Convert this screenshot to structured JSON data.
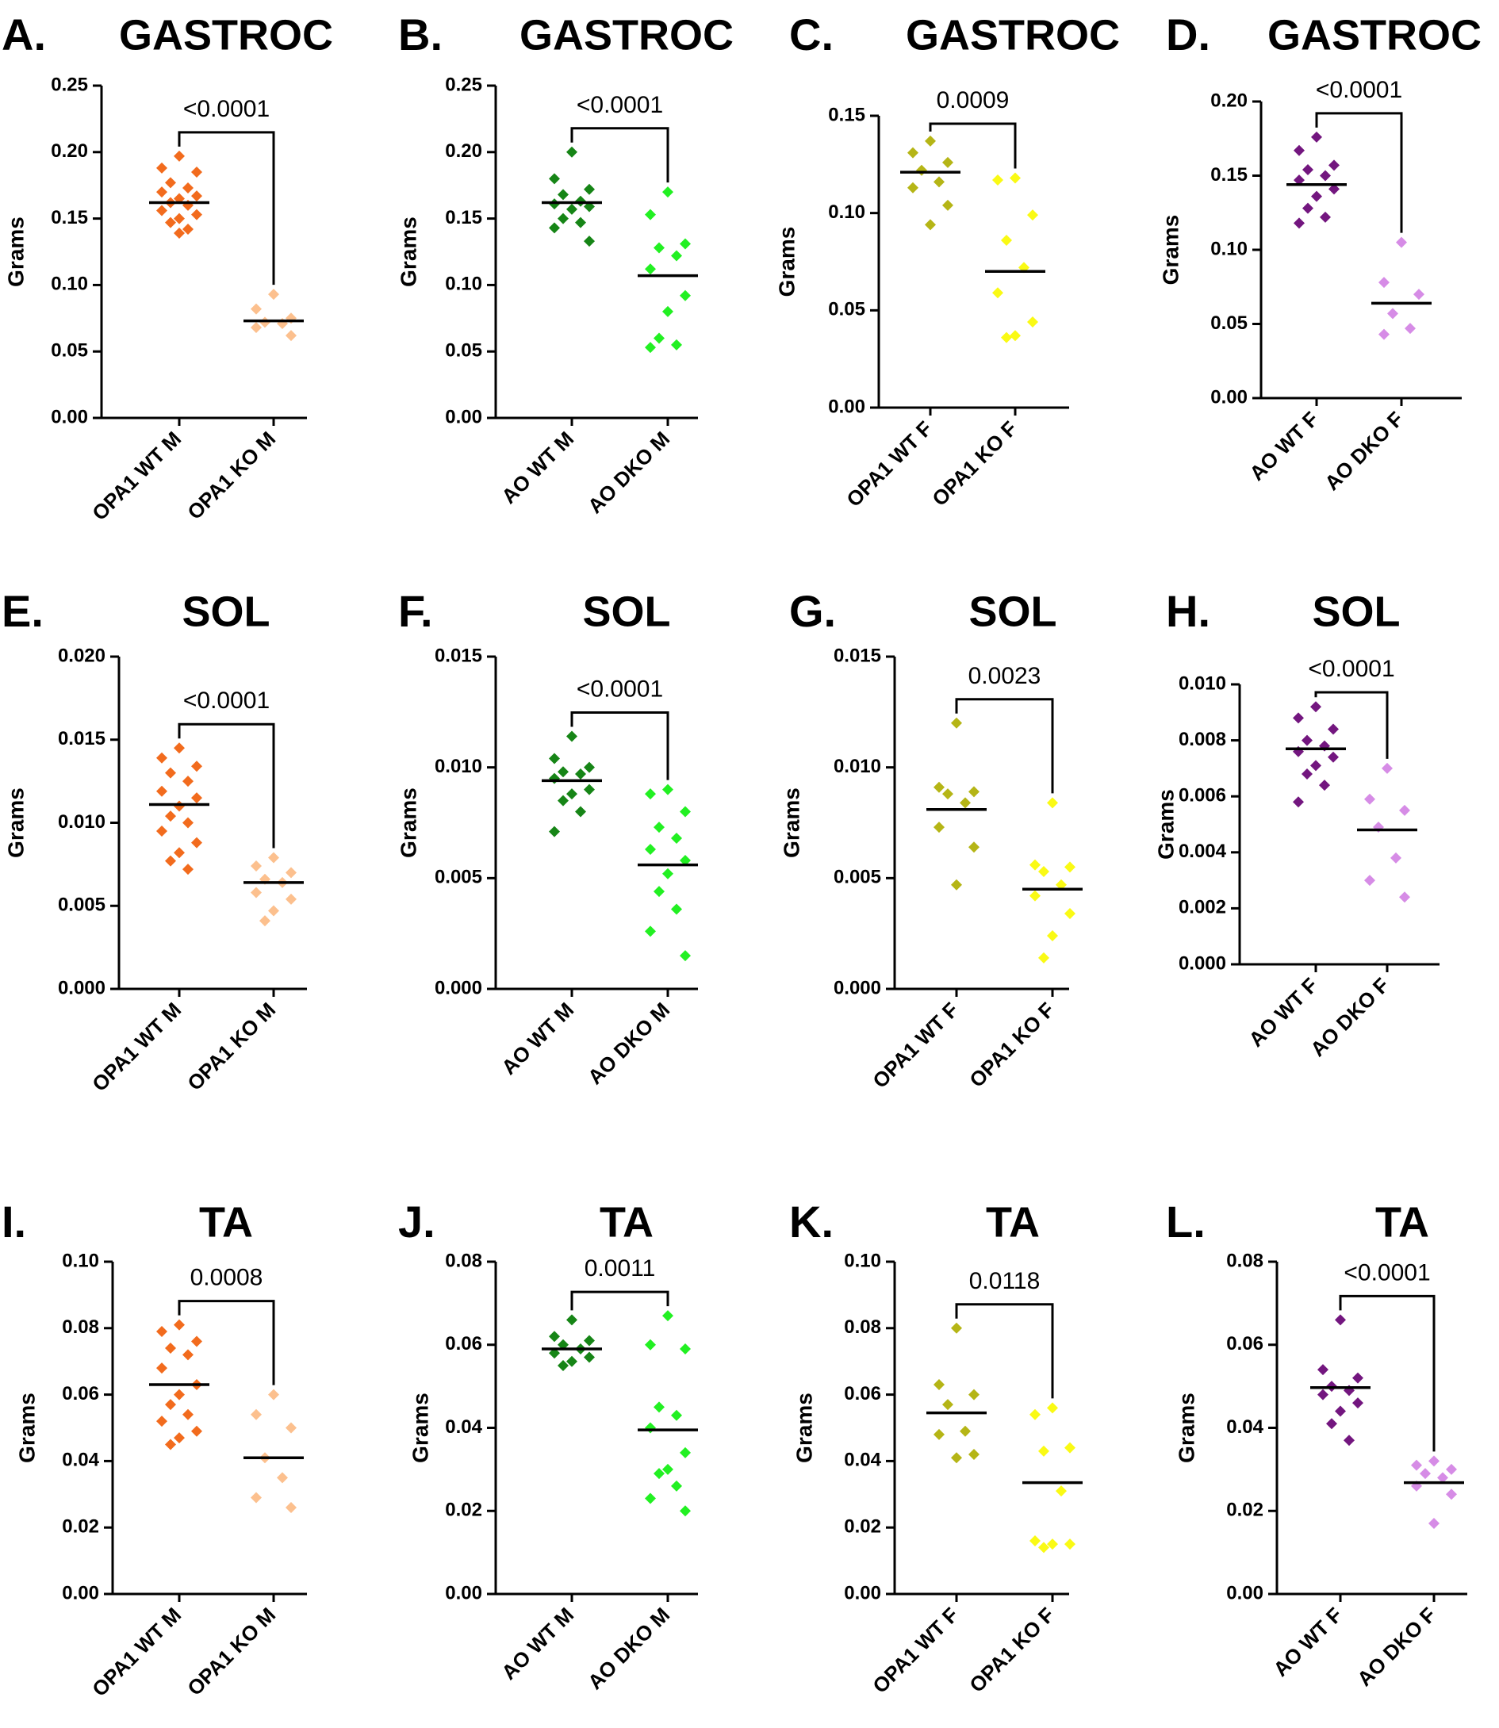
{
  "chart_data": [
    {
      "id": "A",
      "letter": "A.",
      "type": "scatter",
      "title": "GASTROC",
      "ylabel": "Grams",
      "ylim": [
        0,
        0.25
      ],
      "yticks": [
        "0.00",
        "0.05",
        "0.10",
        "0.15",
        "0.20",
        "0.25"
      ],
      "categories": [
        "OPA1 WT M",
        "OPA1 KO M"
      ],
      "colors": [
        "#f26b1d",
        "#fcc08e"
      ],
      "means": [
        0.162,
        0.073
      ],
      "pvalue": "<0.0001",
      "big": true,
      "series": [
        [
          0.197,
          0.188,
          0.185,
          0.177,
          0.173,
          0.17,
          0.167,
          0.165,
          0.162,
          0.16,
          0.156,
          0.153,
          0.15,
          0.147,
          0.142,
          0.139
        ],
        [
          0.093,
          0.082,
          0.075,
          0.072,
          0.071,
          0.068,
          0.062
        ]
      ]
    },
    {
      "id": "B",
      "letter": "B.",
      "type": "scatter",
      "title": "GASTROC",
      "ylabel": "Grams",
      "ylim": [
        0,
        0.25
      ],
      "yticks": [
        "0.00",
        "0.05",
        "0.10",
        "0.15",
        "0.20",
        "0.25"
      ],
      "categories": [
        "AO WT M",
        "AO DKO M"
      ],
      "colors": [
        "#168516",
        "#22f022"
      ],
      "means": [
        0.162,
        0.107
      ],
      "pvalue": "<0.0001",
      "big": true,
      "series": [
        [
          0.2,
          0.18,
          0.172,
          0.168,
          0.163,
          0.161,
          0.159,
          0.157,
          0.15,
          0.147,
          0.143,
          0.133
        ],
        [
          0.17,
          0.153,
          0.131,
          0.128,
          0.122,
          0.112,
          0.092,
          0.08,
          0.06,
          0.055,
          0.053
        ]
      ]
    },
    {
      "id": "C",
      "letter": "C.",
      "type": "scatter",
      "title": "GASTROC",
      "ylabel": "Grams",
      "ylim": [
        0,
        0.15
      ],
      "yticks": [
        "0.00",
        "0.05",
        "0.10",
        "0.15"
      ],
      "categories": [
        "OPA1 WT F",
        "OPA1 KO F"
      ],
      "colors": [
        "#b5b516",
        "#fafa14"
      ],
      "means": [
        0.121,
        0.07
      ],
      "pvalue": "0.0009",
      "big": false,
      "series": [
        [
          0.137,
          0.131,
          0.126,
          0.122,
          0.116,
          0.113,
          0.104,
          0.094
        ],
        [
          0.118,
          0.117,
          0.099,
          0.086,
          0.072,
          0.059,
          0.044,
          0.037,
          0.036
        ]
      ]
    },
    {
      "id": "D",
      "letter": "D.",
      "type": "scatter",
      "title": "GASTROC",
      "ylabel": "Grams",
      "ylim": [
        0,
        0.2
      ],
      "yticks": [
        "0.00",
        "0.05",
        "0.10",
        "0.15",
        "0.20"
      ],
      "categories": [
        "AO WT F",
        "AO DKO F"
      ],
      "colors": [
        "#73167f",
        "#d68ce6"
      ],
      "means": [
        0.144,
        0.064
      ],
      "pvalue": "<0.0001",
      "big": false,
      "series": [
        [
          0.176,
          0.167,
          0.157,
          0.154,
          0.15,
          0.147,
          0.141,
          0.136,
          0.128,
          0.122,
          0.118
        ],
        [
          0.105,
          0.078,
          0.07,
          0.057,
          0.047,
          0.043
        ]
      ]
    },
    {
      "id": "E",
      "letter": "E.",
      "type": "scatter",
      "title": "SOL",
      "ylabel": "Grams",
      "ylim": [
        0,
        0.02
      ],
      "yticks": [
        "0.000",
        "0.005",
        "0.010",
        "0.015",
        "0.020"
      ],
      "categories": [
        "OPA1 WT M",
        "OPA1 KO M"
      ],
      "colors": [
        "#f26b1d",
        "#fcc08e"
      ],
      "means": [
        0.0111,
        0.0064
      ],
      "pvalue": "<0.0001",
      "big": true,
      "series": [
        [
          0.0145,
          0.0139,
          0.0134,
          0.013,
          0.0125,
          0.0119,
          0.0115,
          0.011,
          0.0104,
          0.01,
          0.0095,
          0.0088,
          0.0082,
          0.0077,
          0.0072
        ],
        [
          0.0079,
          0.0074,
          0.007,
          0.0066,
          0.0064,
          0.0058,
          0.0054,
          0.0047,
          0.0041
        ]
      ]
    },
    {
      "id": "F",
      "letter": "F.",
      "type": "scatter",
      "title": "SOL",
      "ylabel": "Grams",
      "ylim": [
        0,
        0.015
      ],
      "yticks": [
        "0.000",
        "0.005",
        "0.010",
        "0.015"
      ],
      "categories": [
        "AO WT M",
        "AO DKO M"
      ],
      "colors": [
        "#168516",
        "#22f022"
      ],
      "means": [
        0.0094,
        0.0056
      ],
      "pvalue": "<0.0001",
      "big": true,
      "series": [
        [
          0.0114,
          0.0104,
          0.01,
          0.0098,
          0.0097,
          0.0095,
          0.009,
          0.0088,
          0.0085,
          0.008,
          0.0071
        ],
        [
          0.009,
          0.0088,
          0.008,
          0.0073,
          0.0068,
          0.0063,
          0.0058,
          0.0052,
          0.0044,
          0.0036,
          0.0026,
          0.0015
        ]
      ]
    },
    {
      "id": "G",
      "letter": "G.",
      "type": "scatter",
      "title": "SOL",
      "ylabel": "Grams",
      "ylim": [
        0,
        0.015
      ],
      "yticks": [
        "0.000",
        "0.005",
        "0.010",
        "0.015"
      ],
      "categories": [
        "OPA1 WT F",
        "OPA1 KO F"
      ],
      "colors": [
        "#b5b516",
        "#fafa14"
      ],
      "means": [
        0.0081,
        0.0045
      ],
      "pvalue": "0.0023",
      "big": false,
      "series": [
        [
          0.012,
          0.0091,
          0.0089,
          0.0088,
          0.0084,
          0.0073,
          0.0064,
          0.0047
        ],
        [
          0.0084,
          0.0056,
          0.0055,
          0.0053,
          0.0047,
          0.0042,
          0.0034,
          0.0024,
          0.0014
        ]
      ]
    },
    {
      "id": "H",
      "letter": "H.",
      "type": "scatter",
      "title": "SOL",
      "ylabel": "Grams",
      "ylim": [
        0,
        0.01
      ],
      "yticks": [
        "0.000",
        "0.002",
        "0.004",
        "0.006",
        "0.008",
        "0.010"
      ],
      "categories": [
        "AO WT F",
        "AO DKO F"
      ],
      "colors": [
        "#73167f",
        "#d68ce6"
      ],
      "means": [
        0.0077,
        0.0048
      ],
      "pvalue": "<0.0001",
      "big": false,
      "series": [
        [
          0.0092,
          0.0088,
          0.0084,
          0.008,
          0.0078,
          0.0076,
          0.0074,
          0.0071,
          0.0068,
          0.0064,
          0.0058
        ],
        [
          0.007,
          0.0059,
          0.0055,
          0.0049,
          0.0038,
          0.003,
          0.0024
        ]
      ]
    },
    {
      "id": "I",
      "letter": "I.",
      "type": "scatter",
      "title": "TA",
      "ylabel": "Grams",
      "ylim": [
        0,
        0.1
      ],
      "yticks": [
        "0.00",
        "0.02",
        "0.04",
        "0.06",
        "0.08",
        "0.10"
      ],
      "categories": [
        "OPA1 WT M",
        "OPA1 KO M"
      ],
      "colors": [
        "#f26b1d",
        "#fcc08e"
      ],
      "means": [
        0.063,
        0.041
      ],
      "pvalue": "0.0008",
      "big": true,
      "series": [
        [
          0.081,
          0.079,
          0.076,
          0.074,
          0.072,
          0.068,
          0.063,
          0.06,
          0.057,
          0.054,
          0.052,
          0.049,
          0.047,
          0.045
        ],
        [
          0.06,
          0.054,
          0.05,
          0.041,
          0.035,
          0.029,
          0.026
        ]
      ]
    },
    {
      "id": "J",
      "letter": "J.",
      "type": "scatter",
      "title": "TA",
      "ylabel": "Grams",
      "ylim": [
        0,
        0.08
      ],
      "yticks": [
        "0.00",
        "0.02",
        "0.04",
        "0.06",
        "0.08"
      ],
      "categories": [
        "AO WT M",
        "AO DKO M"
      ],
      "colors": [
        "#168516",
        "#22f022"
      ],
      "means": [
        0.059,
        0.0395
      ],
      "pvalue": "0.0011",
      "big": true,
      "series": [
        [
          0.066,
          0.062,
          0.061,
          0.06,
          0.059,
          0.058,
          0.057,
          0.056,
          0.055
        ],
        [
          0.067,
          0.06,
          0.059,
          0.045,
          0.043,
          0.04,
          0.034,
          0.03,
          0.029,
          0.026,
          0.023,
          0.02
        ]
      ]
    },
    {
      "id": "K",
      "letter": "K.",
      "type": "scatter",
      "title": "TA",
      "ylabel": "Grams",
      "ylim": [
        0,
        0.1
      ],
      "yticks": [
        "0.00",
        "0.02",
        "0.04",
        "0.06",
        "0.08",
        "0.10"
      ],
      "categories": [
        "OPA1 WT F",
        "OPA1 KO F"
      ],
      "colors": [
        "#b5b516",
        "#fafa14"
      ],
      "means": [
        0.0545,
        0.0335
      ],
      "pvalue": "0.0118",
      "big": false,
      "series": [
        [
          0.08,
          0.063,
          0.06,
          0.057,
          0.049,
          0.048,
          0.042,
          0.041
        ],
        [
          0.056,
          0.054,
          0.044,
          0.043,
          0.031,
          0.016,
          0.015,
          0.015,
          0.014
        ]
      ]
    },
    {
      "id": "L",
      "letter": "L.",
      "type": "scatter",
      "title": "TA",
      "ylabel": "Grams",
      "ylim": [
        0,
        0.08
      ],
      "yticks": [
        "0.00",
        "0.02",
        "0.04",
        "0.06",
        "0.08"
      ],
      "categories": [
        "AO WT F",
        "AO DKO F"
      ],
      "colors": [
        "#73167f",
        "#d68ce6"
      ],
      "means": [
        0.0497,
        0.0268
      ],
      "pvalue": "<0.0001",
      "big": false,
      "series": [
        [
          0.066,
          0.054,
          0.052,
          0.05,
          0.049,
          0.048,
          0.046,
          0.044,
          0.041,
          0.037
        ],
        [
          0.032,
          0.031,
          0.03,
          0.029,
          0.028,
          0.026,
          0.024,
          0.017
        ]
      ]
    }
  ]
}
